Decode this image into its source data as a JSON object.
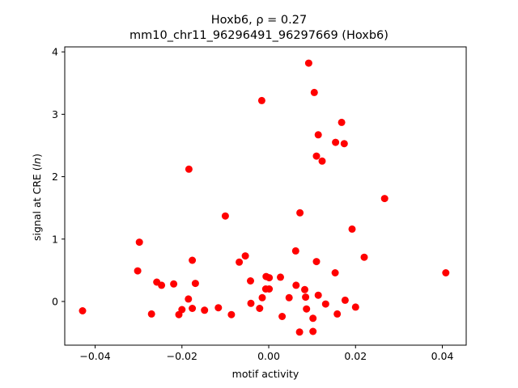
{
  "chart_data": {
    "type": "scatter",
    "title_line1": "Hoxb6, ρ = 0.27",
    "title_line2": "mm10_chr11_96296491_96297669 (Hoxb6)",
    "xlabel": "motif activity",
    "ylabel": "signal at CRE (ln)",
    "xlim": [
      -0.047,
      0.0455
    ],
    "ylim": [
      -0.7,
      4.08
    ],
    "xticks": [
      {
        "value": -0.04,
        "label": "−0.04"
      },
      {
        "value": -0.02,
        "label": "−0.02"
      },
      {
        "value": 0.0,
        "label": "0.00"
      },
      {
        "value": 0.02,
        "label": "0.02"
      },
      {
        "value": 0.04,
        "label": "0.04"
      }
    ],
    "yticks": [
      {
        "value": 0,
        "label": "0"
      },
      {
        "value": 1,
        "label": "1"
      },
      {
        "value": 2,
        "label": "2"
      },
      {
        "value": 3,
        "label": "3"
      },
      {
        "value": 4,
        "label": "4"
      }
    ],
    "grid": false,
    "marker_color": "#ff0000",
    "points": [
      {
        "x": -0.0429,
        "y": -0.15
      },
      {
        "x": -0.0302,
        "y": 0.49
      },
      {
        "x": -0.0298,
        "y": 0.95
      },
      {
        "x": -0.027,
        "y": -0.2
      },
      {
        "x": -0.0258,
        "y": 0.31
      },
      {
        "x": -0.0247,
        "y": 0.26
      },
      {
        "x": -0.0219,
        "y": 0.28
      },
      {
        "x": -0.0207,
        "y": -0.21
      },
      {
        "x": -0.02,
        "y": -0.13
      },
      {
        "x": -0.0185,
        "y": 0.04
      },
      {
        "x": -0.0184,
        "y": 2.12
      },
      {
        "x": -0.0176,
        "y": 0.66
      },
      {
        "x": -0.0176,
        "y": -0.11
      },
      {
        "x": -0.0169,
        "y": 0.29
      },
      {
        "x": -0.0148,
        "y": -0.14
      },
      {
        "x": -0.0116,
        "y": -0.1
      },
      {
        "x": -0.01,
        "y": 1.37
      },
      {
        "x": -0.0086,
        "y": -0.21
      },
      {
        "x": -0.0068,
        "y": 0.63
      },
      {
        "x": -0.0054,
        "y": 0.73
      },
      {
        "x": -0.0042,
        "y": 0.33
      },
      {
        "x": -0.0041,
        "y": -0.03
      },
      {
        "x": -0.0021,
        "y": -0.11
      },
      {
        "x": -0.0016,
        "y": 3.22
      },
      {
        "x": -0.0015,
        "y": 0.06
      },
      {
        "x": -0.0007,
        "y": 0.2
      },
      {
        "x": -0.0006,
        "y": 0.4
      },
      {
        "x": 0.0001,
        "y": 0.38
      },
      {
        "x": 0.0001,
        "y": 0.2
      },
      {
        "x": 0.0027,
        "y": 0.39
      },
      {
        "x": 0.0031,
        "y": -0.24
      },
      {
        "x": 0.0047,
        "y": 0.06
      },
      {
        "x": 0.0062,
        "y": 0.81
      },
      {
        "x": 0.0063,
        "y": 0.26
      },
      {
        "x": 0.0071,
        "y": -0.49
      },
      {
        "x": 0.0072,
        "y": 1.42
      },
      {
        "x": 0.0083,
        "y": 0.19
      },
      {
        "x": 0.0085,
        "y": 0.07
      },
      {
        "x": 0.0087,
        "y": -0.12
      },
      {
        "x": 0.0092,
        "y": 3.82
      },
      {
        "x": 0.0102,
        "y": -0.27
      },
      {
        "x": 0.0102,
        "y": -0.48
      },
      {
        "x": 0.0105,
        "y": 3.35
      },
      {
        "x": 0.011,
        "y": 0.64
      },
      {
        "x": 0.011,
        "y": 2.33
      },
      {
        "x": 0.0114,
        "y": 2.67
      },
      {
        "x": 0.0114,
        "y": 0.1
      },
      {
        "x": 0.0123,
        "y": 2.25
      },
      {
        "x": 0.0131,
        "y": -0.04
      },
      {
        "x": 0.0153,
        "y": 0.46
      },
      {
        "x": 0.0154,
        "y": 2.55
      },
      {
        "x": 0.0158,
        "y": -0.2
      },
      {
        "x": 0.0168,
        "y": 2.87
      },
      {
        "x": 0.0174,
        "y": 2.53
      },
      {
        "x": 0.0176,
        "y": 0.02
      },
      {
        "x": 0.0192,
        "y": 1.16
      },
      {
        "x": 0.02,
        "y": -0.09
      },
      {
        "x": 0.022,
        "y": 0.71
      },
      {
        "x": 0.0267,
        "y": 1.65
      },
      {
        "x": 0.0408,
        "y": 0.46
      }
    ]
  }
}
